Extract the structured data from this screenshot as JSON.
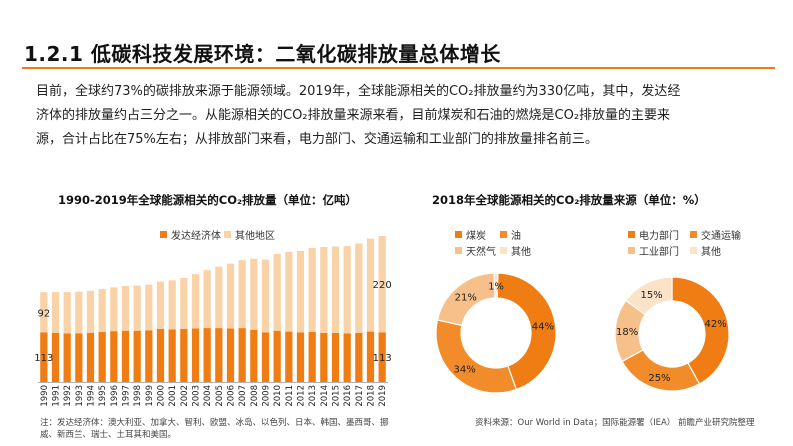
{
  "page": {
    "title": "1.2.1 低碳科技发展环境：二氧化碳排放量总体增长",
    "intro_lines": [
      "目前，全球约73%的碳排放来源于能源领域。2019年，全球能源相关的CO₂排放量约为330亿吨，其中，发达经",
      "济体的排放量约占三分之一。从能源相关的CO₂排放量来源来看，目前煤炭和石油的燃烧是CO₂排放量的主要来",
      "源，合计占比在75%左右；从排放部门来看，电力部门、交通运输和工业部门的排放量排名前三。"
    ],
    "note": "注：发达经济体：澳大利亚、加拿大、智利、欧盟、冰岛、以色列、日本、韩国、墨西哥、挪威、新西兰、瑞士、土耳其和美国。",
    "source": "资料来源：Our World in Data；国际能源署（IEA） 前瞻产业研究院整理"
  },
  "chart_data": [
    {
      "type": "bar",
      "stacked": true,
      "title": "1990-2019年全球能源相关的CO₂排放量（单位：亿吨）",
      "categories": [
        "1990",
        "1991",
        "1992",
        "1993",
        "1994",
        "1995",
        "1996",
        "1997",
        "1998",
        "1999",
        "2000",
        "2001",
        "2002",
        "2003",
        "2004",
        "2005",
        "2006",
        "2007",
        "2008",
        "2009",
        "2010",
        "2011",
        "2012",
        "2013",
        "2014",
        "2015",
        "2016",
        "2017",
        "2018",
        "2019"
      ],
      "series": [
        {
          "name": "发达经济体",
          "color": "#ef7d14",
          "values": [
            113,
            112,
            111,
            111,
            112,
            114,
            116,
            117,
            117,
            118,
            121,
            120,
            121,
            122,
            123,
            123,
            122,
            123,
            119,
            113,
            117,
            115,
            113,
            114,
            112,
            112,
            111,
            112,
            115,
            113
          ]
        },
        {
          "name": "其他地区",
          "color": "#f9d3a7",
          "values": [
            92,
            93,
            94,
            95,
            96,
            98,
            100,
            102,
            103,
            104,
            108,
            112,
            116,
            124,
            132,
            140,
            148,
            155,
            162,
            166,
            175,
            182,
            186,
            192,
            196,
            197,
            199,
            204,
            212,
            220
          ]
        }
      ],
      "data_labels": {
        "first": {
          "bottom": "113",
          "top": "92"
        },
        "last": {
          "bottom": "113",
          "top": "220"
        }
      },
      "legend": "top-left"
    },
    {
      "type": "pie",
      "donut": true,
      "title": "2018年全球能源相关的CO₂排放量来源（单位：%）",
      "legend_title_shared": true,
      "slices": [
        {
          "name": "煤炭",
          "value": 44,
          "label": "44%",
          "color": "#ef7d14"
        },
        {
          "name": "油",
          "value": 34,
          "label": "34%",
          "color": "#f28c2a"
        },
        {
          "name": "天然气",
          "value": 21,
          "label": "21%",
          "color": "#f7c08a"
        },
        {
          "name": "其他",
          "value": 1,
          "label": "1%",
          "color": "#fbe3c8"
        }
      ]
    },
    {
      "type": "pie",
      "donut": true,
      "slices": [
        {
          "name": "电力部门",
          "value": 42,
          "label": "42%",
          "color": "#ef7d14"
        },
        {
          "name": "交通运输",
          "value": 25,
          "label": "25%",
          "color": "#f28c2a"
        },
        {
          "name": "工业部门",
          "value": 18,
          "label": "18%",
          "color": "#f7c08a"
        },
        {
          "name": "其他",
          "value": 15,
          "label": "15%",
          "color": "#fbe3c8"
        }
      ]
    }
  ]
}
